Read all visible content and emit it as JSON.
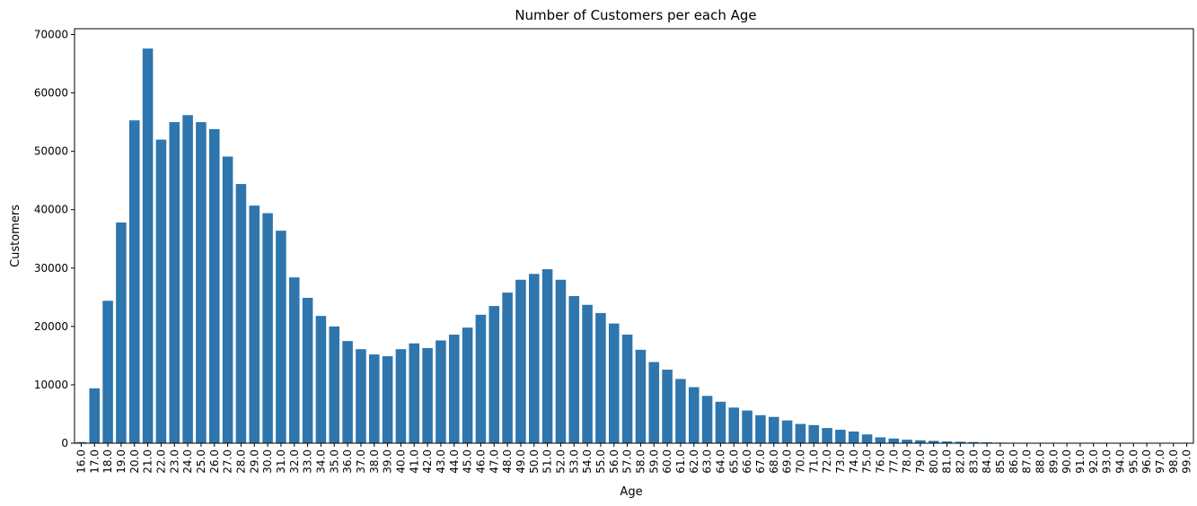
{
  "chart_data": {
    "type": "bar",
    "title": "Number of Customers per each Age",
    "xlabel": "Age",
    "ylabel": "Customers",
    "ylim": [
      0,
      71000
    ],
    "yticks": [
      0,
      10000,
      20000,
      30000,
      40000,
      50000,
      60000,
      70000
    ],
    "grid": false,
    "color": "#2e76ad",
    "categories": [
      "16.0",
      "17.0",
      "18.0",
      "19.0",
      "20.0",
      "21.0",
      "22.0",
      "23.0",
      "24.0",
      "25.0",
      "26.0",
      "27.0",
      "28.0",
      "29.0",
      "30.0",
      "31.0",
      "32.0",
      "33.0",
      "34.0",
      "35.0",
      "36.0",
      "37.0",
      "38.0",
      "39.0",
      "40.0",
      "41.0",
      "42.0",
      "43.0",
      "44.0",
      "45.0",
      "46.0",
      "47.0",
      "48.0",
      "49.0",
      "50.0",
      "51.0",
      "52.0",
      "53.0",
      "54.0",
      "55.0",
      "56.0",
      "57.0",
      "58.0",
      "59.0",
      "60.0",
      "61.0",
      "62.0",
      "63.0",
      "64.0",
      "65.0",
      "66.0",
      "67.0",
      "68.0",
      "69.0",
      "70.0",
      "71.0",
      "72.0",
      "73.0",
      "74.0",
      "75.0",
      "76.0",
      "77.0",
      "78.0",
      "79.0",
      "80.0",
      "81.0",
      "82.0",
      "83.0",
      "84.0",
      "85.0",
      "86.0",
      "87.0",
      "88.0",
      "89.0",
      "90.0",
      "91.0",
      "92.0",
      "93.0",
      "94.0",
      "95.0",
      "96.0",
      "97.0",
      "98.0",
      "99.0"
    ],
    "values": [
      200,
      9400,
      24400,
      37800,
      55300,
      67600,
      52000,
      55000,
      56200,
      55000,
      53800,
      49100,
      44400,
      40700,
      39400,
      36400,
      28400,
      24900,
      21800,
      20000,
      17500,
      16100,
      15200,
      14900,
      16100,
      17100,
      16300,
      17600,
      18600,
      19800,
      22000,
      23500,
      25800,
      28000,
      29000,
      29800,
      28000,
      25200,
      23700,
      22300,
      20500,
      18600,
      16000,
      13900,
      12600,
      11000,
      9600,
      8100,
      7100,
      6100,
      5600,
      4800,
      4500,
      3900,
      3300,
      3100,
      2600,
      2300,
      2000,
      1500,
      1000,
      800,
      600,
      500,
      400,
      300,
      250,
      200,
      150,
      100,
      60,
      40,
      30,
      20,
      10,
      5,
      5,
      3,
      2,
      1,
      1,
      1,
      1,
      1
    ]
  }
}
